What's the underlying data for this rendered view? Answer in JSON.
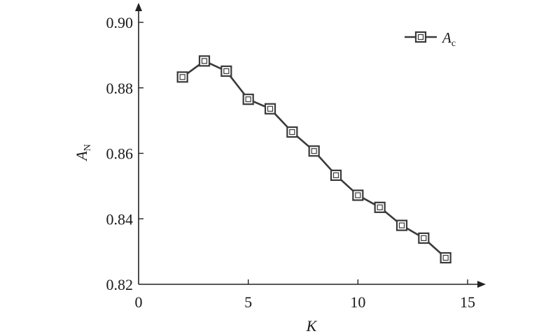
{
  "chart_data": {
    "type": "line",
    "xlabel": "K",
    "ylabel": "A",
    "ylabel_sub": "N",
    "xlim": [
      0,
      15
    ],
    "ylim": [
      0.82,
      0.9
    ],
    "xticks": [
      0,
      5,
      10,
      15
    ],
    "xtick_labels": [
      "0",
      "5",
      "10",
      "15"
    ],
    "yticks": [
      0.82,
      0.84,
      0.86,
      0.88,
      0.9
    ],
    "ytick_labels": [
      "0.82",
      "0.84",
      "0.86",
      "0.88",
      "0.90"
    ],
    "grid": false,
    "legend_position": "top-right",
    "series": [
      {
        "name": "A",
        "name_sub": "c",
        "color": "#3a3a3a",
        "marker": "square",
        "x": [
          2,
          3,
          4,
          5,
          6,
          7,
          8,
          9,
          10,
          11,
          12,
          13,
          14
        ],
        "y": [
          0.8833,
          0.8882,
          0.8851,
          0.8765,
          0.8736,
          0.8665,
          0.8607,
          0.8533,
          0.8472,
          0.8435,
          0.838,
          0.8341,
          0.8281
        ]
      }
    ]
  }
}
